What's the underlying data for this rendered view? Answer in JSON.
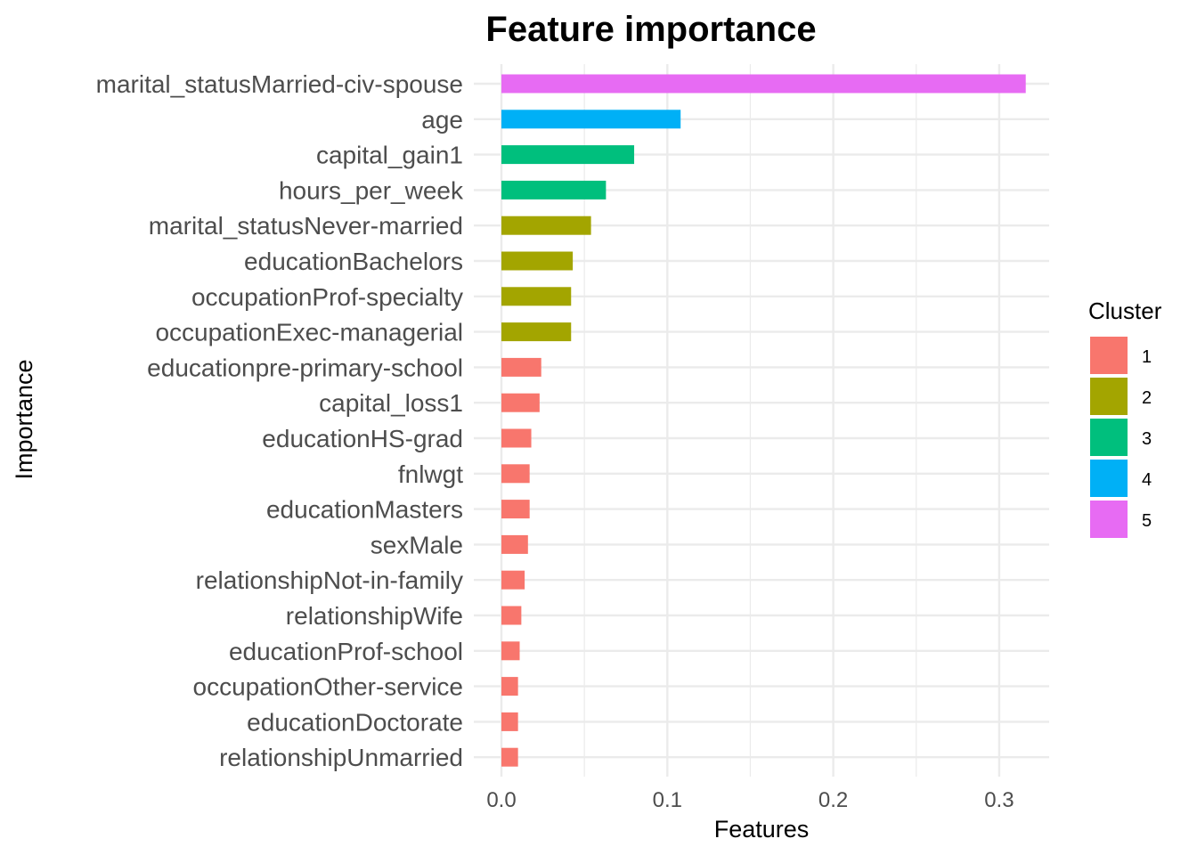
{
  "chart_data": {
    "type": "bar",
    "orientation": "horizontal",
    "title": "Feature importance",
    "xlabel": "Features",
    "ylabel": "Importance",
    "xlim": [
      0,
      0.33
    ],
    "x_ticks": [
      "0.0",
      "0.1",
      "0.2",
      "0.3"
    ],
    "x_tick_values": [
      0,
      0.1,
      0.2,
      0.3
    ],
    "grid": true,
    "legend": {
      "title": "Cluster",
      "placement": "right",
      "entries": [
        {
          "label": "1",
          "color": "#F8766D"
        },
        {
          "label": "2",
          "color": "#A3A500"
        },
        {
          "label": "3",
          "color": "#00BF7D"
        },
        {
          "label": "4",
          "color": "#00B0F6"
        },
        {
          "label": "5",
          "color": "#E76BF3"
        }
      ]
    },
    "categories": [
      "marital_statusMarried-civ-spouse",
      "age",
      "capital_gain1",
      "hours_per_week",
      "marital_statusNever-married",
      "educationBachelors",
      "occupationProf-specialty",
      "occupationExec-managerial",
      "educationpre-primary-school",
      "capital_loss1",
      "educationHS-grad",
      "fnlwgt",
      "educationMasters",
      "sexMale",
      "relationshipNot-in-family",
      "relationshipWife",
      "educationProf-school",
      "occupationOther-service",
      "educationDoctorate",
      "relationshipUnmarried"
    ],
    "values": [
      0.316,
      0.108,
      0.08,
      0.063,
      0.054,
      0.043,
      0.042,
      0.042,
      0.024,
      0.023,
      0.018,
      0.017,
      0.017,
      0.016,
      0.014,
      0.012,
      0.011,
      0.01,
      0.01,
      0.01
    ],
    "clusters": [
      "5",
      "4",
      "3",
      "3",
      "2",
      "2",
      "2",
      "2",
      "1",
      "1",
      "1",
      "1",
      "1",
      "1",
      "1",
      "1",
      "1",
      "1",
      "1",
      "1"
    ]
  }
}
